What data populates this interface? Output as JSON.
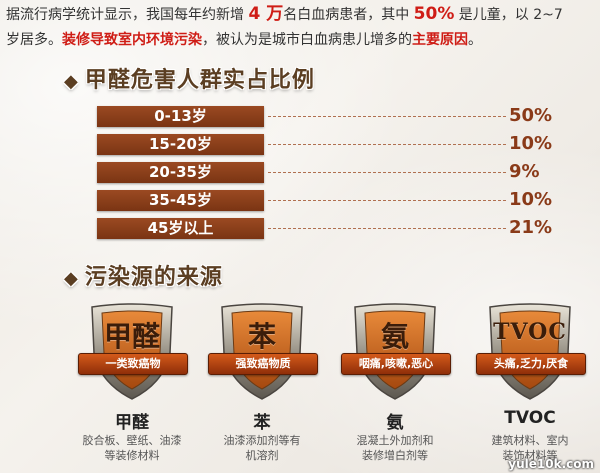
{
  "intro": {
    "line1_a": "据流行病学统计显示，我国每年约新增 ",
    "line1_num1": "4 万",
    "line1_b": "名白血病患者，其中 ",
    "line1_num2": "50%",
    "line1_c": " 是儿童，以 2~7",
    "line2_a": "岁居多。",
    "line2_red1": "装修导致室内环境污染",
    "line2_b": "，被认为是城市白血病患儿增多的",
    "line2_red2": "主要原因",
    "line2_c": "。"
  },
  "section1": {
    "bullet": "◆",
    "title": "甲醛危害人群实占比例"
  },
  "section2": {
    "bullet": "◆",
    "title": "污染源的来源"
  },
  "chart_data": {
    "type": "bar",
    "categories": [
      "0-13岁",
      "15-20岁",
      "20-35岁",
      "35-45岁",
      "45岁以上"
    ],
    "values": [
      50,
      10,
      9,
      10,
      21
    ],
    "value_labels": [
      "50%",
      "10%",
      "9%",
      "10%",
      "21%"
    ],
    "title": "甲醛危害人群实占比例"
  },
  "sources": [
    {
      "glyph": "甲醛",
      "ribbon": "一类致癌物",
      "name": "甲醛",
      "desc1": "胶合板、壁纸、油漆",
      "desc2": "等装修材料"
    },
    {
      "glyph": "苯",
      "ribbon": "强致癌物质",
      "name": "苯",
      "desc1": "油漆添加剂等有",
      "desc2": "机溶剂"
    },
    {
      "glyph": "氨",
      "ribbon": "咽痛,咳嗽,恶心",
      "name": "氨",
      "desc1": "混凝土外加剂和",
      "desc2": "装修增白剂等"
    },
    {
      "glyph": "TVOC",
      "ribbon": "头痛,乏力,厌食",
      "name": "TVOC",
      "desc1": "建筑材料、室内",
      "desc2": "装饰材料等"
    }
  ],
  "watermark": "yule10k.com",
  "colors": {
    "bar": "#8a3d17",
    "pct": "#8a3a18",
    "accent": "#cf1d16",
    "title": "#5b3e22"
  }
}
